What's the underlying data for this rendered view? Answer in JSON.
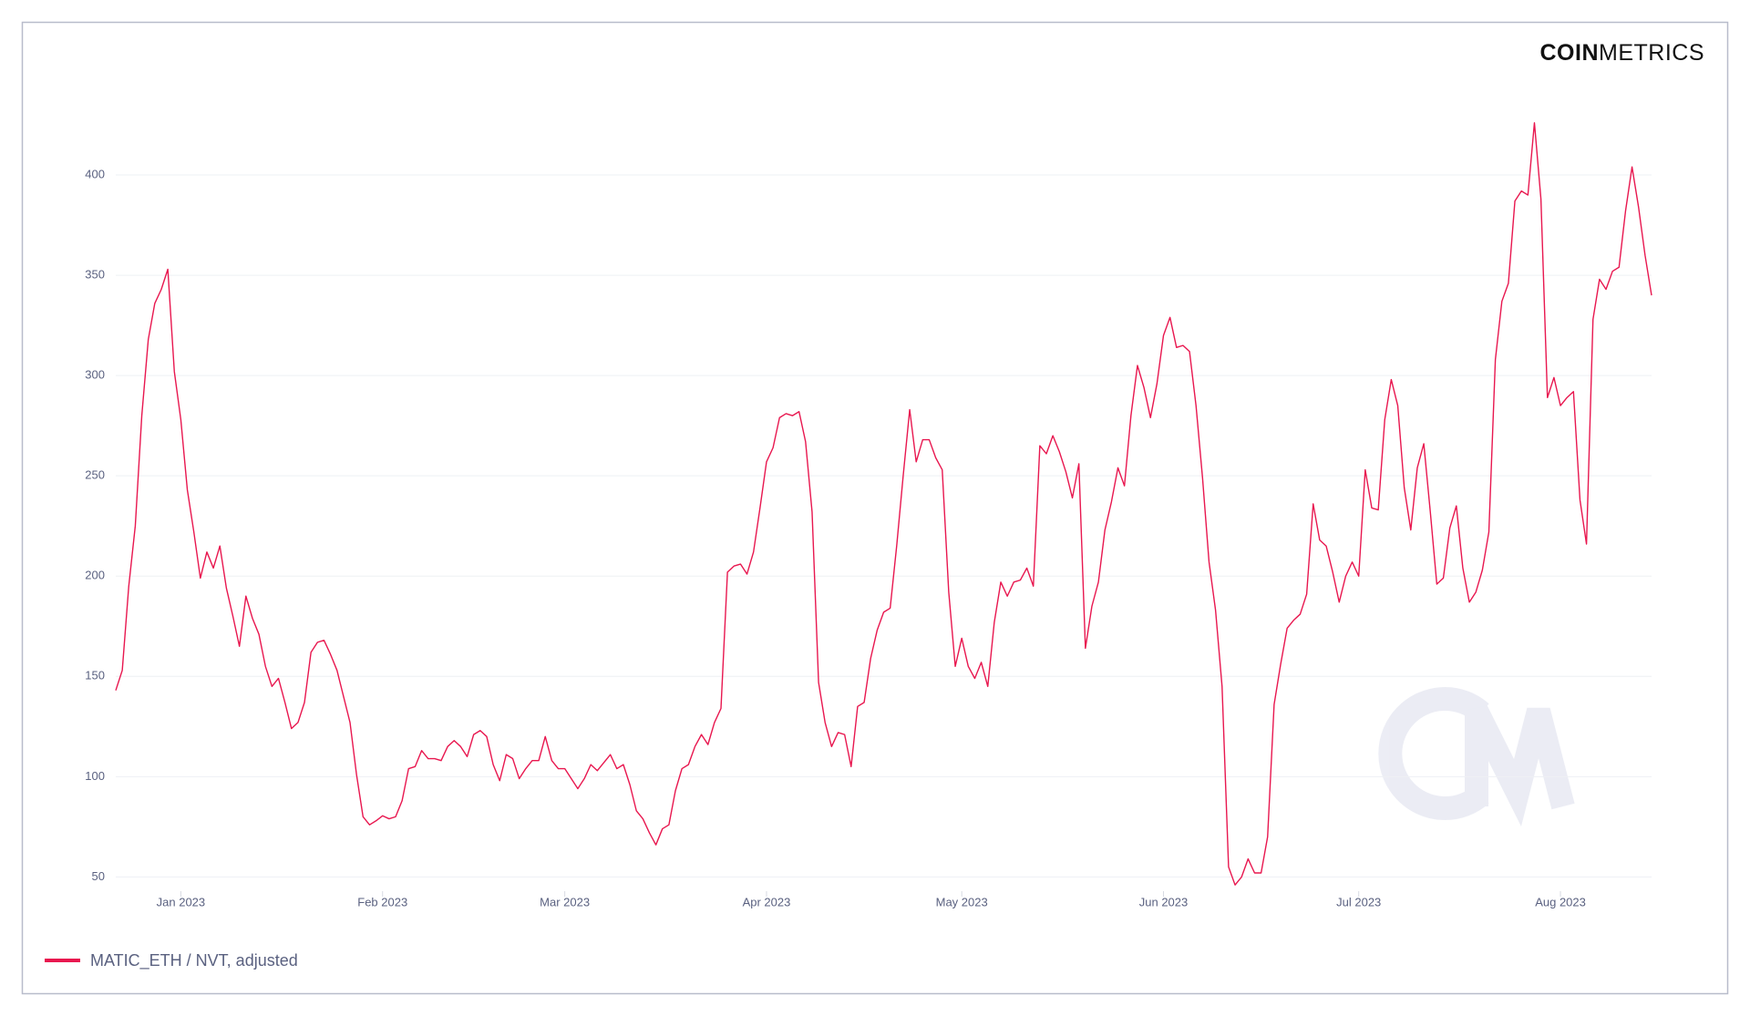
{
  "brand": {
    "bold": "COIN",
    "light": "METRICS"
  },
  "chart_data": {
    "type": "line",
    "series": [
      {
        "name": "MATIC_ETH / NVT, adjusted",
        "color": "#e8174f",
        "values": [
          143,
          153,
          195,
          225,
          280,
          318,
          336,
          343,
          353,
          302,
          278,
          243,
          222,
          199,
          212,
          204,
          215,
          194,
          180,
          165,
          190,
          179,
          171,
          155,
          145,
          149,
          137,
          124,
          127,
          137,
          162,
          167,
          168,
          161,
          153,
          140,
          127,
          101,
          80,
          76,
          78,
          80.5,
          79,
          80,
          88,
          104,
          105,
          113,
          109,
          109,
          108,
          115,
          118,
          115,
          110,
          121,
          123,
          120,
          106,
          98,
          111,
          109,
          99,
          104,
          108,
          108,
          120,
          108,
          104,
          104,
          99,
          94,
          99,
          106,
          103,
          107,
          111,
          104,
          106,
          96,
          83,
          79,
          72,
          66,
          74,
          76,
          93,
          104,
          106,
          115,
          121,
          116,
          127,
          134,
          202,
          205,
          206,
          201,
          212,
          234,
          257,
          264,
          279,
          281,
          280,
          282,
          267,
          232,
          147,
          127,
          115,
          122,
          121,
          105,
          135,
          137,
          159,
          173,
          182,
          184,
          215,
          250,
          283,
          257,
          268,
          268,
          259,
          253,
          192,
          155,
          169,
          155,
          149,
          157,
          145,
          177,
          197,
          190,
          197,
          198,
          204,
          195,
          265,
          261,
          270,
          262,
          252,
          239,
          256,
          164,
          185,
          197,
          223,
          237,
          254,
          245,
          280,
          305,
          294,
          279,
          296,
          320,
          329,
          314,
          315,
          312,
          285,
          249,
          207,
          183,
          145,
          55,
          46,
          50,
          59,
          52,
          52,
          70,
          136,
          156,
          174,
          178,
          181,
          191,
          236,
          218,
          215,
          202,
          187,
          200,
          207,
          200,
          253,
          234,
          233,
          278,
          298,
          285,
          244,
          223,
          254,
          266,
          232,
          196,
          199,
          224,
          235,
          204,
          187,
          192,
          203,
          222,
          308,
          337,
          346,
          387,
          392,
          390,
          426,
          388,
          289,
          299,
          285,
          289,
          292,
          238,
          216,
          328,
          348,
          343,
          352,
          354,
          382,
          404,
          384,
          360,
          340
        ]
      }
    ],
    "xlim": [
      0,
      236
    ],
    "xticks": [
      {
        "value": 10,
        "label": "Jan 2023"
      },
      {
        "value": 41,
        "label": "Feb 2023"
      },
      {
        "value": 69,
        "label": "Mar 2023"
      },
      {
        "value": 100,
        "label": "Apr 2023"
      },
      {
        "value": 130,
        "label": "May 2023"
      },
      {
        "value": 161,
        "label": "Jun 2023"
      },
      {
        "value": 191,
        "label": "Jul 2023"
      },
      {
        "value": 222,
        "label": "Aug 2023"
      }
    ],
    "ylim": [
      42,
      430
    ],
    "yticks": [
      50,
      100,
      150,
      200,
      250,
      300,
      350,
      400
    ],
    "grid": true
  }
}
